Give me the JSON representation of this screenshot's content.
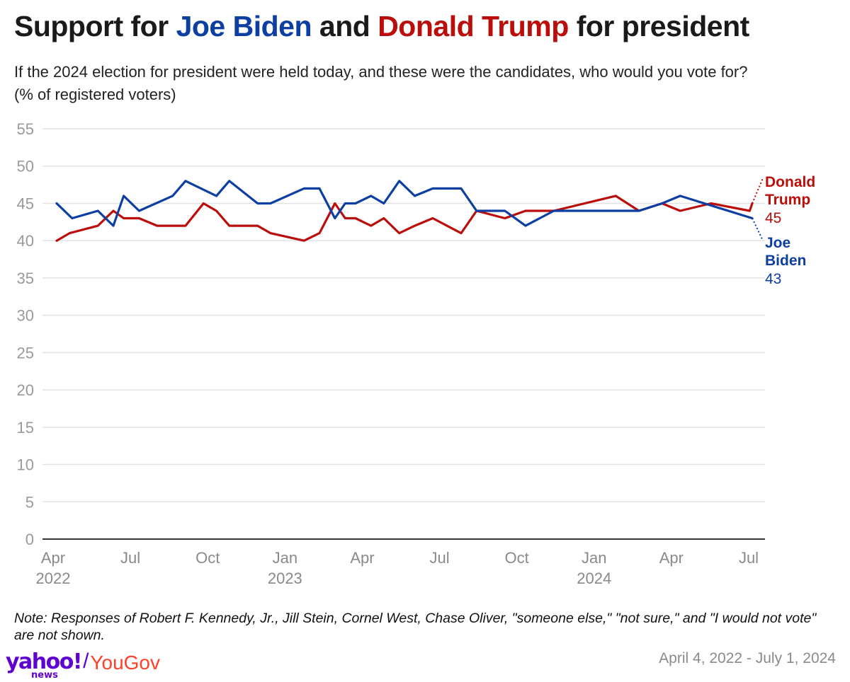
{
  "title": {
    "prefix": "Support for ",
    "biden": "Joe Biden",
    "middle": " and ",
    "trump": "Donald Trump",
    "suffix": " for president"
  },
  "subtitle": {
    "line1": "If the 2024 election for president were held today, and these were the candidates, who would you vote for?",
    "line2": "(% of registered voters)"
  },
  "colors": {
    "biden": "#0d3fa3",
    "trump": "#bb0e0b",
    "grid": "#e2e2e2",
    "axis": "#333333"
  },
  "chart_data": {
    "type": "line",
    "ylim": [
      0,
      55
    ],
    "yticks": [
      0,
      5,
      10,
      15,
      20,
      25,
      30,
      35,
      40,
      45,
      50,
      55
    ],
    "xticks": [
      {
        "x": 0,
        "label": "Apr",
        "year": "2022"
      },
      {
        "x": 3,
        "label": "Jul",
        "year": ""
      },
      {
        "x": 6,
        "label": "Oct",
        "year": ""
      },
      {
        "x": 9,
        "label": "Jan",
        "year": "2023"
      },
      {
        "x": 12,
        "label": "Apr",
        "year": ""
      },
      {
        "x": 15,
        "label": "Jul",
        "year": ""
      },
      {
        "x": 18,
        "label": "Oct",
        "year": ""
      },
      {
        "x": 21,
        "label": "Jan",
        "year": "2024"
      },
      {
        "x": 24,
        "label": "Apr",
        "year": ""
      },
      {
        "x": 27,
        "label": "Jul",
        "year": ""
      }
    ],
    "series": [
      {
        "name": "Donald Trump",
        "key": "trump",
        "label_line1": "Donald",
        "label_line2": "Trump",
        "final_value": "45",
        "points": [
          [
            0,
            40
          ],
          [
            0.5,
            41
          ],
          [
            1.6,
            42
          ],
          [
            2.2,
            44
          ],
          [
            2.6,
            43
          ],
          [
            3.2,
            43
          ],
          [
            3.9,
            42
          ],
          [
            5,
            42
          ],
          [
            5.7,
            45
          ],
          [
            6.2,
            44
          ],
          [
            6.7,
            42
          ],
          [
            7.8,
            42
          ],
          [
            8.3,
            41
          ],
          [
            9.6,
            40
          ],
          [
            10.2,
            41
          ],
          [
            10.8,
            45
          ],
          [
            11.2,
            43
          ],
          [
            11.6,
            43
          ],
          [
            12.2,
            42
          ],
          [
            12.7,
            43
          ],
          [
            13.3,
            41
          ],
          [
            13.9,
            42
          ],
          [
            14.6,
            43
          ],
          [
            15.7,
            41
          ],
          [
            16.3,
            44
          ],
          [
            17.4,
            43
          ],
          [
            18.2,
            44
          ],
          [
            19.3,
            44
          ],
          [
            21.7,
            46
          ],
          [
            22.6,
            44
          ],
          [
            23.5,
            45
          ],
          [
            24.2,
            44
          ],
          [
            25.4,
            45
          ],
          [
            26.9,
            44
          ],
          [
            27,
            45
          ]
        ]
      },
      {
        "name": "Joe Biden",
        "key": "biden",
        "label_line1": "Joe",
        "label_line2": "Biden",
        "final_value": "43",
        "points": [
          [
            0,
            45
          ],
          [
            0.6,
            43
          ],
          [
            1.6,
            44
          ],
          [
            2.2,
            42
          ],
          [
            2.6,
            46
          ],
          [
            3.2,
            44
          ],
          [
            4.5,
            46
          ],
          [
            5,
            48
          ],
          [
            6.2,
            46
          ],
          [
            6.7,
            48
          ],
          [
            7.8,
            45
          ],
          [
            8.3,
            45
          ],
          [
            9.6,
            47
          ],
          [
            10.2,
            47
          ],
          [
            10.8,
            43
          ],
          [
            11.2,
            45
          ],
          [
            11.6,
            45
          ],
          [
            12.2,
            46
          ],
          [
            12.7,
            45
          ],
          [
            13.3,
            48
          ],
          [
            13.9,
            46
          ],
          [
            14.6,
            47
          ],
          [
            15.7,
            47
          ],
          [
            16.3,
            44
          ],
          [
            17.4,
            44
          ],
          [
            18.2,
            42
          ],
          [
            19.3,
            44
          ],
          [
            21.7,
            44
          ],
          [
            22.6,
            44
          ],
          [
            23.5,
            45
          ],
          [
            24.2,
            46
          ],
          [
            27,
            43
          ]
        ]
      }
    ]
  },
  "note": "Note: Responses of Robert F. Kennedy, Jr., Jill Stein, Cornel West, Chase Oliver, \"someone else,\" \"not sure,\" and \"I would not vote\" are not shown.",
  "footer": {
    "logo_yahoo": "yahoo!",
    "logo_news": "news",
    "logo_slash": "/",
    "logo_yougov": "YouGov",
    "date_range": "April 4, 2022 - July 1, 2024"
  }
}
